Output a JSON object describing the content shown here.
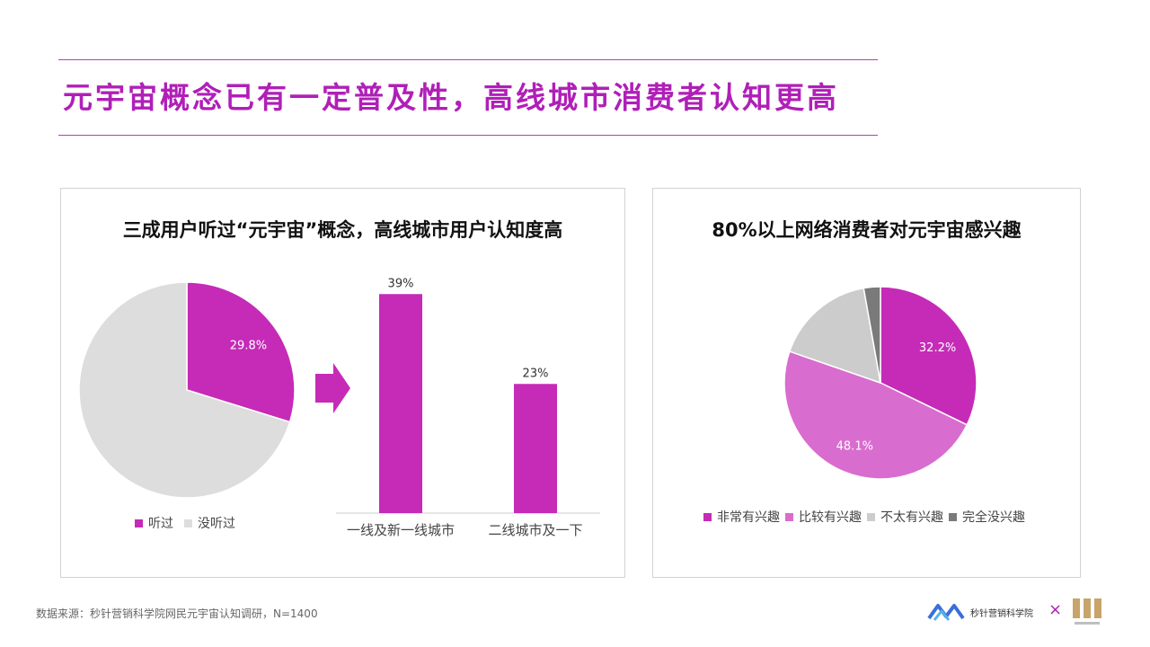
{
  "page": {
    "title": "元宇宙概念已有一定普及性，高线城市消费者认知更高",
    "footnote": "数据来源：秒针营销科学院网民元宇宙认知调研，N=1400",
    "brand_name": "秒针营销科学院",
    "brand_x": "×",
    "accent_color": "#b01fb8"
  },
  "chart_data": [
    {
      "type": "pie",
      "title": "三成用户听过“元宇宙”概念，高线城市用户认知度高",
      "slices": [
        {
          "label": "听过",
          "value": 29.8,
          "value_label": "29.8%",
          "color": "#c52bb7"
        },
        {
          "label": "没听过",
          "value": 70.2,
          "value_label": "",
          "color": "#dddddd"
        }
      ],
      "legend": "bottom"
    },
    {
      "type": "bar",
      "title": "",
      "categories": [
        "一线及新一线城市",
        "二线城市及一下"
      ],
      "values": [
        39,
        23
      ],
      "value_labels": [
        "39%",
        "23%"
      ],
      "color": "#c52bb7",
      "ylim": [
        0,
        40
      ]
    },
    {
      "type": "pie",
      "title": "80%以上网络消费者对元宇宙感兴趣",
      "slices": [
        {
          "label": "非常有兴趣",
          "value": 32.2,
          "value_label": "32.2%",
          "color": "#c52bb7"
        },
        {
          "label": "比较有兴趣",
          "value": 48.1,
          "value_label": "48.1%",
          "color": "#d96ccf"
        },
        {
          "label": "不太有兴趣",
          "value": 16.9,
          "value_label": "",
          "color": "#cccccc"
        },
        {
          "label": "完全没兴趣",
          "value": 2.8,
          "value_label": "",
          "color": "#7a7a7a"
        }
      ],
      "legend": "bottom"
    }
  ]
}
